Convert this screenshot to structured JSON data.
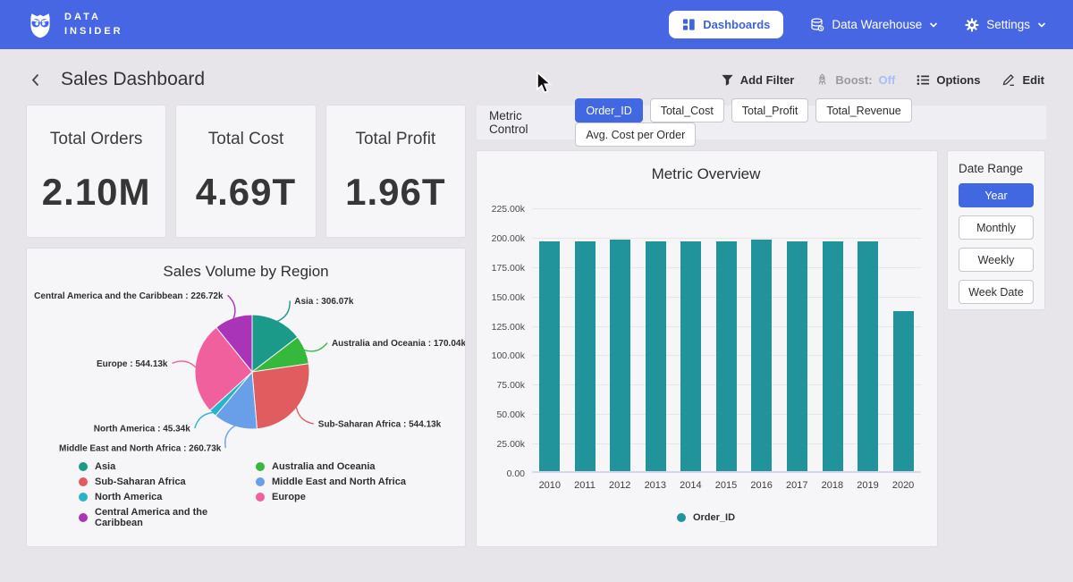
{
  "navbar": {
    "brand_line1": "DATA",
    "brand_line2": "INSIDER",
    "dashboards_label": "Dashboards",
    "data_warehouse_label": "Data Warehouse",
    "settings_label": "Settings"
  },
  "header": {
    "title": "Sales Dashboard",
    "add_filter_label": "Add Filter",
    "boost_label": "Boost:",
    "boost_value": "Off",
    "options_label": "Options",
    "edit_label": "Edit"
  },
  "kpis": [
    {
      "label": "Total Orders",
      "value": "2.10M"
    },
    {
      "label": "Total Cost",
      "value": "4.69T"
    },
    {
      "label": "Total Profit",
      "value": "1.96T"
    }
  ],
  "metric_control": {
    "label": "Metric Control",
    "options": [
      {
        "label": "Order_ID",
        "selected": true
      },
      {
        "label": "Total_Cost",
        "selected": false
      },
      {
        "label": "Total_Profit",
        "selected": false
      },
      {
        "label": "Total_Revenue",
        "selected": false
      },
      {
        "label": "Avg. Cost per Order",
        "selected": false
      }
    ]
  },
  "date_range": {
    "label": "Date Range",
    "options": [
      {
        "label": "Year",
        "selected": true
      },
      {
        "label": "Monthly",
        "selected": false
      },
      {
        "label": "Weekly",
        "selected": false
      },
      {
        "label": "Week Date",
        "selected": false
      }
    ]
  },
  "colors": {
    "navbar": "#4766e4",
    "accent_blue": "#4168e1",
    "page_bg": "#e7e5ea",
    "panel_bg": "#f6f5f8",
    "bar_teal": "#20939b"
  },
  "chart_data": [
    {
      "type": "pie",
      "title": "Sales Volume by Region",
      "unit": "k",
      "slices": [
        {
          "label": "Asia",
          "value": 306.07,
          "display": "306.07k",
          "color": "#1b9a8a"
        },
        {
          "label": "Australia and Oceania",
          "value": 170.04,
          "display": "170.04k",
          "color": "#35b83b"
        },
        {
          "label": "Sub-Saharan Africa",
          "value": 544.13,
          "display": "544.13k",
          "color": "#e05c5e"
        },
        {
          "label": "Middle East and North Africa",
          "value": 260.73,
          "display": "260.73k",
          "color": "#699ee9"
        },
        {
          "label": "North America",
          "value": 45.34,
          "display": "45.34k",
          "color": "#28b4c8"
        },
        {
          "label": "Europe",
          "value": 544.13,
          "display": "544.13k",
          "color": "#f0609c"
        },
        {
          "label": "Central America and the Caribbean",
          "value": 226.72,
          "display": "226.72k",
          "color": "#a934b8"
        }
      ],
      "legend_columns": [
        [
          "Asia",
          "Sub-Saharan Africa",
          "North America",
          "Central America and the Caribbean"
        ],
        [
          "Australia and Oceania",
          "Middle East and North Africa",
          "Europe"
        ]
      ]
    },
    {
      "type": "bar",
      "title": "Metric Overview",
      "categories": [
        "2010",
        "2011",
        "2012",
        "2013",
        "2014",
        "2015",
        "2016",
        "2017",
        "2018",
        "2019",
        "2020"
      ],
      "series": [
        {
          "name": "Order_ID",
          "color": "#20939b",
          "values": [
            195.6,
            195.5,
            196.6,
            195.5,
            195.5,
            195.6,
            196.7,
            195.6,
            195.5,
            195.6,
            136.2
          ]
        }
      ],
      "unit": "k",
      "ylim": [
        0,
        225
      ],
      "yticks": [
        "225.00k",
        "200.00k",
        "175.00k",
        "150.00k",
        "125.00k",
        "100.00k",
        "75.00k",
        "50.00k",
        "25.00k",
        "0.00"
      ],
      "grid": true,
      "legend_position": "bottom"
    }
  ]
}
